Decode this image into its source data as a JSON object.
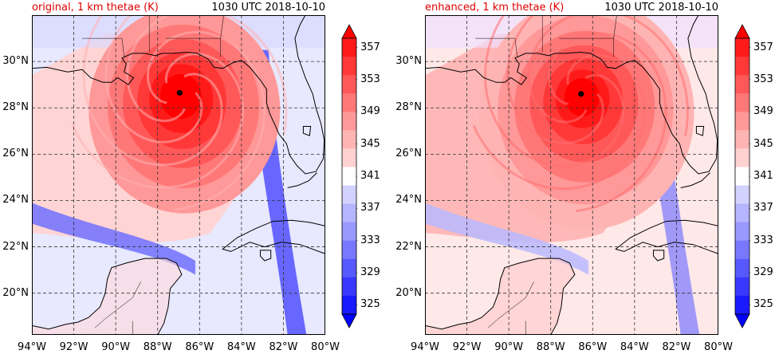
{
  "figure": {
    "panels": [
      {
        "id": "original",
        "title_left": "original, 1 km thetae (K)",
        "title_right": "1030 UTC 2018-10-10",
        "eye_lon": -86.95,
        "eye_lat": 28.65
      },
      {
        "id": "enhanced",
        "title_left": "enhanced, 1 km thetae (K)",
        "title_right": "1030 UTC 2018-10-10",
        "eye_lon": -86.55,
        "eye_lat": 28.6
      }
    ],
    "lat_labels": [
      "30°N",
      "28°N",
      "26°N",
      "24°N",
      "22°N",
      "20°N"
    ],
    "lat_values": [
      30,
      28,
      26,
      24,
      22,
      20
    ],
    "lon_labels": [
      "94°W",
      "92°W",
      "90°W",
      "88°W",
      "86°W",
      "84°W",
      "82°W",
      "80°W"
    ],
    "lon_values": [
      -94,
      -92,
      -90,
      -88,
      -86,
      -84,
      -82,
      -80
    ],
    "extent": {
      "lon_min": -94,
      "lon_max": -80,
      "lat_min": 18.2,
      "lat_max": 32.0
    },
    "colorbar": {
      "labels": [
        "357",
        "353",
        "349",
        "345",
        "341",
        "337",
        "333",
        "329",
        "325"
      ],
      "level_min": 325,
      "level_max": 357,
      "level_step": 2,
      "colors": [
        "#0000ff",
        "#1a1aff",
        "#3838ff",
        "#5858ff",
        "#7878ff",
        "#9898ff",
        "#b4b4ff",
        "#d2d2ff",
        "#ffffff",
        "#ffd2d2",
        "#ffb4b4",
        "#ff9898",
        "#ff7878",
        "#ff5858",
        "#ff3838",
        "#ff1a1a",
        "#ff0000"
      ]
    },
    "colors": {
      "title_accent": "#e00000",
      "coastline": "#000000",
      "gridline": "#333333",
      "eye_marker": "#000000"
    }
  }
}
